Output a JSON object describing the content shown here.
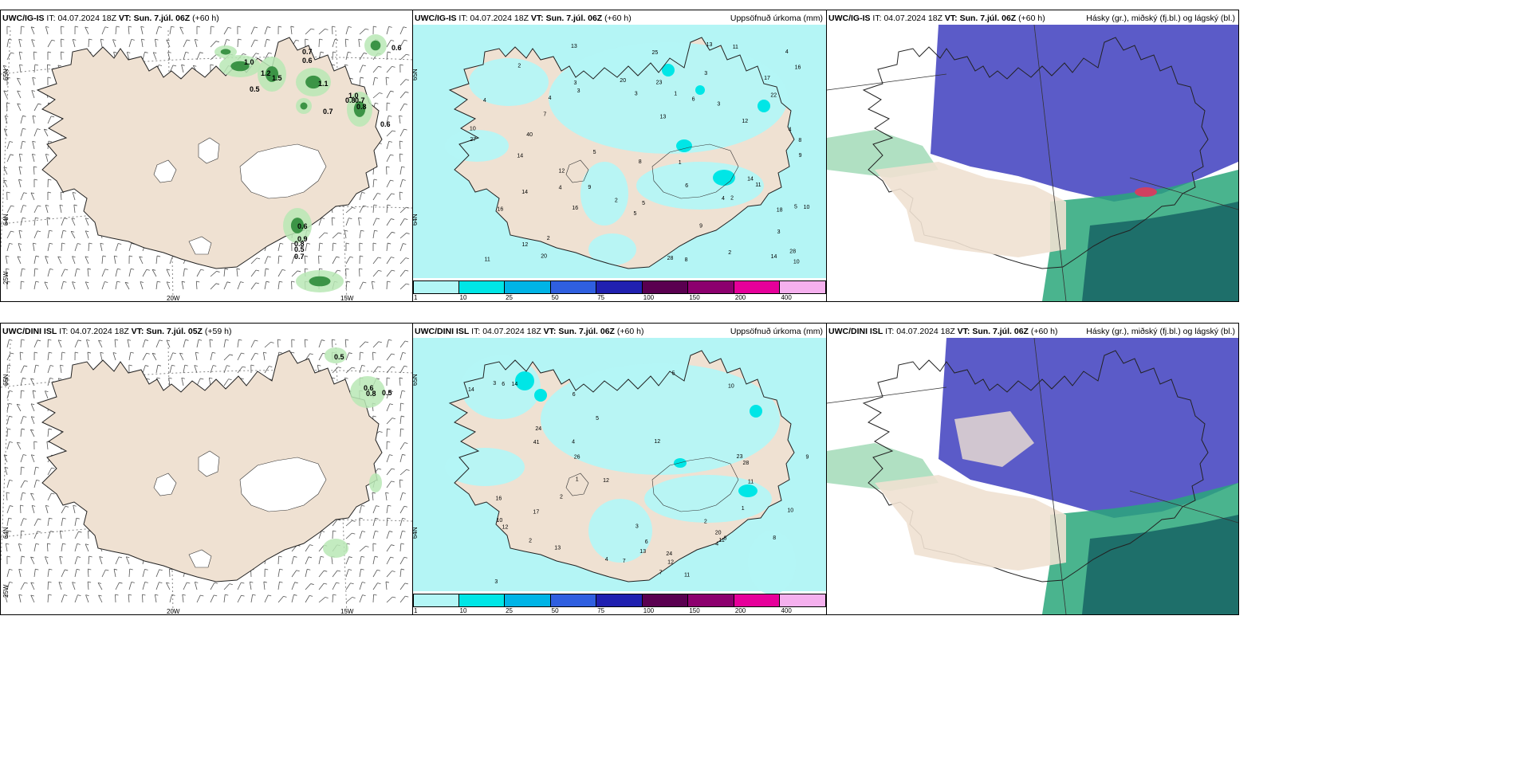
{
  "panels": [
    {
      "model": "UWC/IG-IS",
      "it_label": "IT:",
      "it_value": "04.07.2024 18Z",
      "vt_label": "VT:",
      "vt_value": "Sun. 7.júl. 06Z",
      "lead": "(+60 h)",
      "right_title": "",
      "type": "wind",
      "axis_labels": {
        "lat_top": "65N",
        "lat_bottom": "64N",
        "lon_left": "25W",
        "lon_mid": "20W",
        "lon_right": "15W"
      },
      "values": [
        "1.0",
        "0.7",
        "0.6",
        "1.2",
        "1.5",
        "0.5",
        "1.1",
        "0.8",
        "1.0",
        "0.7",
        "0.7",
        "0.8",
        "0.6",
        "0.6",
        "0.9",
        "0.8",
        "0.5",
        "0.7",
        "0.6"
      ]
    },
    {
      "model": "UWC/IG-IS",
      "it_label": "IT:",
      "it_value": "04.07.2024 18Z",
      "vt_label": "VT:",
      "vt_value": "Sun. 7.júl. 06Z",
      "lead": "(+60 h)",
      "right_title": "Uppsöfnuð úrkoma (mm)",
      "type": "precip",
      "axis_labels": {
        "lat_top": "65N",
        "lat_bottom": "64N"
      },
      "values": [
        "3",
        "4",
        "6",
        "8",
        "5",
        "5",
        "9",
        "13",
        "18",
        "17",
        "7",
        "11",
        "12",
        "16",
        "16",
        "8",
        "12",
        "10",
        "13",
        "20",
        "28",
        "23",
        "12",
        "14",
        "13",
        "11",
        "11",
        "9",
        "28",
        "16",
        "20",
        "10",
        "14",
        "25",
        "40",
        "27",
        "9",
        "6",
        "22",
        "14",
        "8",
        "4",
        "2",
        "5",
        "3",
        "2",
        "1",
        "3",
        "3",
        "2",
        "14",
        "4",
        "2",
        "3",
        "4",
        "5",
        "3",
        "4",
        "2",
        "1",
        "10",
        "4"
      ]
    },
    {
      "model": "UWC/IG-IS",
      "it_label": "IT:",
      "it_value": "04.07.2024 18Z",
      "vt_label": "VT:",
      "vt_value": "Sun. 7.júl. 06Z",
      "lead": "(+60 h)",
      "right_title": "Hásky (gr.), miðský (fj.bl.) og lágský (bl.)",
      "type": "cloud"
    },
    {
      "model": "UWC/DINI ISL",
      "it_label": "IT:",
      "it_value": "04.07.2024 18Z",
      "vt_label": "VT:",
      "vt_value": "Sun. 7.júl. 05Z",
      "lead": "(+59 h)",
      "right_title": "",
      "type": "wind",
      "axis_labels": {
        "lat_top": "65N",
        "lat_bottom": "64N",
        "lon_left": "25W",
        "lon_mid": "20W",
        "lon_right": "15W"
      },
      "values": [
        "0.5",
        "0.6",
        "0.8",
        "0.5"
      ]
    },
    {
      "model": "UWC/DINI ISL",
      "it_label": "IT:",
      "it_value": "04.07.2024 18Z",
      "vt_label": "VT:",
      "vt_value": "Sun. 7.júl. 06Z",
      "lead": "(+60 h)",
      "right_title": "Uppsöfnuð úrkoma (mm)",
      "type": "precip",
      "axis_labels": {
        "lat_top": "65N",
        "lat_bottom": "64N"
      },
      "values": [
        "4",
        "6",
        "12",
        "14",
        "9",
        "12",
        "13",
        "16",
        "23",
        "24",
        "17",
        "8",
        "7",
        "11",
        "10",
        "12",
        "20",
        "11",
        "10",
        "28",
        "14",
        "11",
        "41",
        "26",
        "24",
        "13",
        "5",
        "7",
        "6",
        "4",
        "3",
        "2",
        "1",
        "3",
        "4",
        "5",
        "6",
        "8",
        "12",
        "2",
        "3",
        "2",
        "1",
        "10"
      ]
    },
    {
      "model": "UWC/DINI ISL",
      "it_label": "IT:",
      "it_value": "04.07.2024 18Z",
      "vt_label": "VT:",
      "vt_value": "Sun. 7.júl. 06Z",
      "lead": "(+60 h)",
      "right_title": "Hásky (gr.), miðský (fj.bl.) og lágský (bl.)",
      "type": "cloud"
    }
  ],
  "colorbar": {
    "labels": [
      "1",
      "10",
      "25",
      "50",
      "75",
      "100",
      "150",
      "200",
      "400"
    ],
    "colors": [
      "#b3f6f6",
      "#00e6e6",
      "#00b4e6",
      "#2f5fe0",
      "#2020b0",
      "#5a0050",
      "#8c006e",
      "#e6009a",
      "#f5b0ee"
    ]
  },
  "colors": {
    "land": "#efe1d2",
    "sea_precip": "#b4f5f5",
    "high_cloud": "#5b5bc8",
    "mid_cloud": "#2aa77a",
    "low_cloud": "#1e6f6a",
    "gust_green": "#2e8b3a"
  }
}
